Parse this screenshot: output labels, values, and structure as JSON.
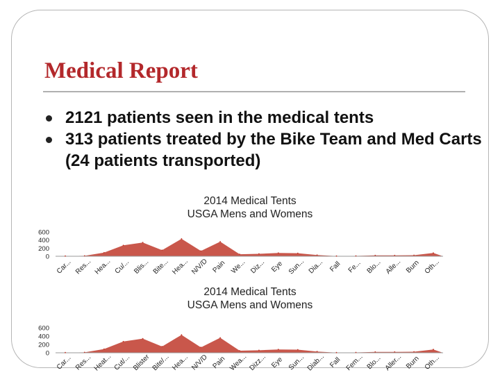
{
  "slide": {
    "title": "Medical Report",
    "bullets": [
      "2121 patients seen in the medical tents",
      "313 patients treated by the Bike Team and Med Carts (24 patients transported)"
    ]
  },
  "colors": {
    "title": "#b3282b",
    "series": "#c0392b",
    "rule": "#b0b0b0"
  },
  "chart_data": [
    {
      "type": "area",
      "title": "2014 Medical Tents USGA Mens and Womens",
      "title_lines": [
        "2014 Medical Tents",
        "USGA Mens and Womens"
      ],
      "categories": [
        "Car...",
        "Res...",
        "Hea...",
        "Cu/...",
        "Blis...",
        "Bite...",
        "Hea...",
        "N/V/D",
        "Pain",
        "We...",
        "Diz...",
        "Eye",
        "Sun...",
        "Dia...",
        "Fall",
        "Fe...",
        "Blo...",
        "Alle...",
        "Burn",
        "Oth..."
      ],
      "values": [
        5,
        10,
        90,
        270,
        340,
        150,
        430,
        130,
        360,
        50,
        60,
        80,
        75,
        30,
        5,
        8,
        20,
        20,
        25,
        80
      ],
      "yticks": [
        "600",
        "400",
        "200",
        "0"
      ],
      "ylim": [
        0,
        600
      ]
    },
    {
      "type": "area",
      "title": "2014 Medical Tents USGA Mens and Womens",
      "title_lines": [
        "2014 Medical Tents",
        "USGA Mens and Womens"
      ],
      "categories": [
        "Car...",
        "Res...",
        "Heat...",
        "Cut/...",
        "Blister",
        "Bite/...",
        "Hea...",
        "N/V/D",
        "Pain",
        "Wea...",
        "Dizz...",
        "Eye",
        "Sun...",
        "Diab...",
        "Fall",
        "Fem...",
        "Blo...",
        "Aller...",
        "Burn",
        "Oth..."
      ],
      "values": [
        5,
        10,
        90,
        270,
        340,
        150,
        430,
        130,
        360,
        50,
        60,
        80,
        75,
        30,
        5,
        8,
        20,
        20,
        25,
        80
      ],
      "yticks": [
        "600",
        "400",
        "200",
        "0"
      ],
      "ylim": [
        0,
        600
      ]
    }
  ]
}
